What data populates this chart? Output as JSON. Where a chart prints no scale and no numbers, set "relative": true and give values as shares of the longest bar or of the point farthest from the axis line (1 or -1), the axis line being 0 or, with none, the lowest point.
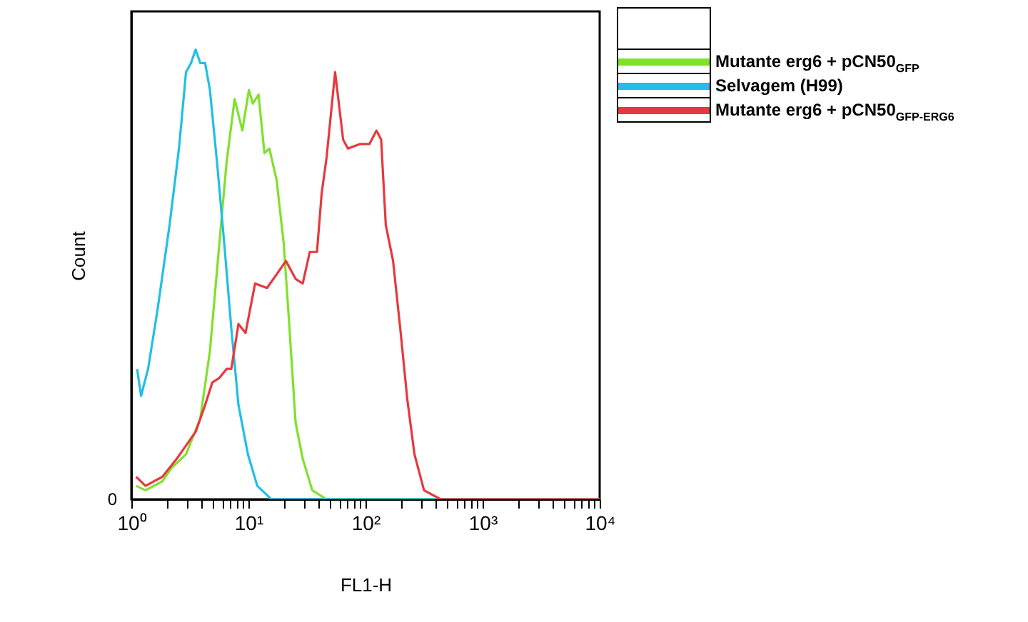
{
  "chart_data": {
    "type": "line",
    "relative": true,
    "xlabel": "FL1-H",
    "ylabel": "Count",
    "log": "x",
    "legend": "top right",
    "annotations": [
      "0"
    ],
    "xlim": [
      1,
      10000
    ],
    "xticks": [
      {
        "value": 1,
        "label": "10⁰"
      },
      {
        "value": 2,
        "label": null
      },
      {
        "value": 3,
        "label": null
      },
      {
        "value": 4,
        "label": null
      },
      {
        "value": 5,
        "label": null
      },
      {
        "value": 6,
        "label": null
      },
      {
        "value": 7,
        "label": null
      },
      {
        "value": 8,
        "label": null
      },
      {
        "value": 9,
        "label": null
      },
      {
        "value": 10,
        "label": "10¹"
      },
      {
        "value": 20,
        "label": null
      },
      {
        "value": 30,
        "label": null
      },
      {
        "value": 40,
        "label": null
      },
      {
        "value": 50,
        "label": null
      },
      {
        "value": 60,
        "label": null
      },
      {
        "value": 70,
        "label": null
      },
      {
        "value": 80,
        "label": null
      },
      {
        "value": 90,
        "label": null
      },
      {
        "value": 100,
        "label": "10²"
      },
      {
        "value": 200,
        "label": null
      },
      {
        "value": 300,
        "label": null
      },
      {
        "value": 400,
        "label": null
      },
      {
        "value": 500,
        "label": null
      },
      {
        "value": 600,
        "label": null
      },
      {
        "value": 700,
        "label": null
      },
      {
        "value": 800,
        "label": null
      },
      {
        "value": 900,
        "label": null
      },
      {
        "value": 1000,
        "label": "10³"
      },
      {
        "value": 2000,
        "label": null
      },
      {
        "value": 3000,
        "label": null
      },
      {
        "value": 4000,
        "label": null
      },
      {
        "value": 5000,
        "label": null
      },
      {
        "value": 6000,
        "label": null
      },
      {
        "value": 7000,
        "label": null
      },
      {
        "value": 8000,
        "label": null
      },
      {
        "value": 9000,
        "label": null
      },
      {
        "value": 10000,
        "label": "10⁴"
      }
    ],
    "series": [
      {
        "name": "Mutante  erg6 + pCN50$_{GFP}$",
        "color": "#7fe12a",
        "x": [
          1.1,
          1.32,
          1.84,
          2.21,
          2.93,
          3.88,
          4.69,
          5.65,
          6.51,
          7.62,
          8.87,
          10.1,
          10.9,
          12.2,
          13.7,
          15.1,
          17.4,
          20.0,
          21.9,
          25.3,
          29.1,
          35.1,
          46.5,
          10000
        ],
        "values": [
          0.03,
          0.02,
          0.04,
          0.07,
          0.1,
          0.18,
          0.33,
          0.57,
          0.75,
          0.89,
          0.82,
          0.91,
          0.88,
          0.9,
          0.77,
          0.78,
          0.71,
          0.57,
          0.42,
          0.17,
          0.09,
          0.02,
          0,
          0
        ]
      },
      {
        "name": "Selvagem (H99)",
        "color": "#1fbfe8",
        "x": [
          1.12,
          1.21,
          1.39,
          1.67,
          2.12,
          2.55,
          2.93,
          3.23,
          3.54,
          3.88,
          4.27,
          4.69,
          5.39,
          6.21,
          7.14,
          8.22,
          9.9,
          11.9,
          15.7,
          10000
        ],
        "values": [
          0.29,
          0.23,
          0.29,
          0.42,
          0.61,
          0.78,
          0.95,
          0.97,
          1,
          0.97,
          0.97,
          0.91,
          0.75,
          0.57,
          0.38,
          0.21,
          0.1,
          0.03,
          0,
          0
        ]
      },
      {
        "name": "Mutante  erg6 + pCN50$_{GFP-ERG6}$",
        "color": "#e8383d",
        "x": [
          1.1,
          1.32,
          1.84,
          2.44,
          3.54,
          4.27,
          4.92,
          5.65,
          6.51,
          7.14,
          8.22,
          9.45,
          11.4,
          14.4,
          17.4,
          20.9,
          25.3,
          29.1,
          33.4,
          38.5,
          42.2,
          46.5,
          55.0,
          64.4,
          70.8,
          89.4,
          108,
          124,
          136,
          149,
          172,
          198,
          228,
          262,
          316,
          439,
          10000
        ],
        "values": [
          0.05,
          0.03,
          0.05,
          0.09,
          0.15,
          0.21,
          0.26,
          0.27,
          0.29,
          0.29,
          0.39,
          0.37,
          0.48,
          0.47,
          0.5,
          0.53,
          0.49,
          0.48,
          0.55,
          0.55,
          0.68,
          0.76,
          0.95,
          0.8,
          0.78,
          0.79,
          0.79,
          0.82,
          0.8,
          0.61,
          0.53,
          0.38,
          0.22,
          0.1,
          0.02,
          0,
          0
        ]
      }
    ]
  }
}
